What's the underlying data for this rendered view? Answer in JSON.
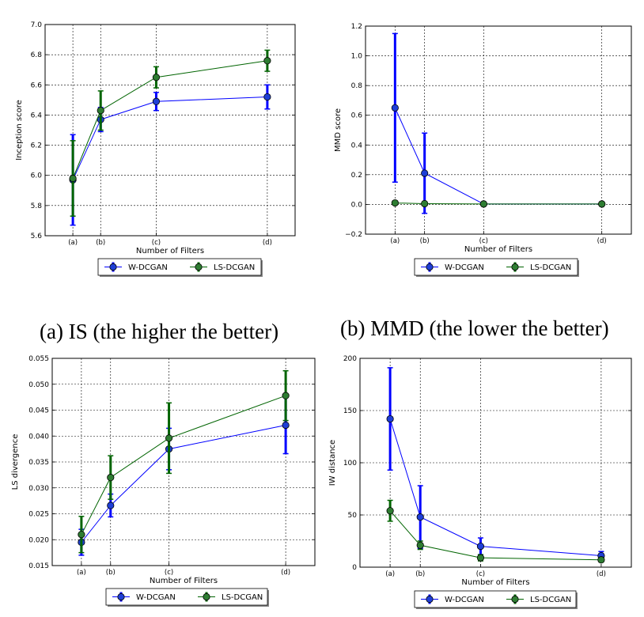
{
  "colors": {
    "w_dcgan": "#0000ff",
    "ls_dcgan": "#006400",
    "w_face": "#1f3fd6",
    "ls_face": "#2e7d32"
  },
  "captions": [
    "(a) IS (the higher the better)",
    "(b) MMD (the lower the better)"
  ],
  "chart_data": [
    {
      "type": "line",
      "xlabel": "Number of Filters",
      "ylabel": "Inception score",
      "categories": [
        "(a)",
        "(b)",
        "(c)",
        "(d)"
      ],
      "x": [
        1,
        2,
        4,
        8
      ],
      "ylim": [
        5.6,
        7.0
      ],
      "yticks": [
        5.6,
        5.8,
        6.0,
        6.2,
        6.4,
        6.6,
        6.8,
        7.0
      ],
      "ytick_labels": [
        "5.6",
        "5.8",
        "6.0",
        "6.2",
        "6.4",
        "6.6",
        "6.8",
        "7.0"
      ],
      "grid": true,
      "legend": "bottom",
      "series": [
        {
          "name": "W-DCGAN",
          "values": [
            5.97,
            6.37,
            6.49,
            6.52
          ],
          "err": [
            0.3,
            0.08,
            0.06,
            0.08
          ]
        },
        {
          "name": "LS-DCGAN",
          "values": [
            5.98,
            6.43,
            6.65,
            6.76
          ],
          "err": [
            0.25,
            0.13,
            0.07,
            0.07
          ]
        }
      ]
    },
    {
      "type": "line",
      "xlabel": "Number of Filters",
      "ylabel": "MMD score",
      "categories": [
        "(a)",
        "(b)",
        "(c)",
        "(d)"
      ],
      "x": [
        1,
        2,
        4,
        8
      ],
      "ylim": [
        -0.2,
        1.2
      ],
      "yticks": [
        -0.2,
        0.0,
        0.2,
        0.4,
        0.6,
        0.8,
        1.0,
        1.2
      ],
      "ytick_labels": [
        "−0.2",
        "0.0",
        "0.2",
        "0.4",
        "0.6",
        "0.8",
        "1.0",
        "1.2"
      ],
      "grid": true,
      "legend": "bottom",
      "series": [
        {
          "name": "W-DCGAN",
          "values": [
            0.65,
            0.21,
            0.003,
            0.003
          ],
          "err": [
            0.5,
            0.27,
            0.005,
            0.005
          ]
        },
        {
          "name": "LS-DCGAN",
          "values": [
            0.01,
            0.005,
            0.003,
            0.003
          ],
          "err": [
            0.01,
            0.005,
            0.003,
            0.003
          ]
        }
      ]
    },
    {
      "type": "line",
      "xlabel": "Number of Filters",
      "ylabel": "LS divergence",
      "categories": [
        "(a)",
        "(b)",
        "(c)",
        "(d)"
      ],
      "x": [
        1,
        2,
        4,
        8
      ],
      "ylim": [
        0.015,
        0.055
      ],
      "yticks": [
        0.015,
        0.02,
        0.025,
        0.03,
        0.035,
        0.04,
        0.045,
        0.05,
        0.055
      ],
      "ytick_labels": [
        "0.015",
        "0.020",
        "0.025",
        "0.030",
        "0.035",
        "0.040",
        "0.045",
        "0.050",
        "0.055"
      ],
      "grid": true,
      "legend": "bottom",
      "series": [
        {
          "name": "W-DCGAN",
          "values": [
            0.0195,
            0.0266,
            0.0375,
            0.0421
          ],
          "err": [
            0.0025,
            0.0022,
            0.004,
            0.0055
          ]
        },
        {
          "name": "LS-DCGAN",
          "values": [
            0.021,
            0.032,
            0.0396,
            0.0478
          ],
          "err": [
            0.0035,
            0.0042,
            0.0068,
            0.0048
          ]
        }
      ]
    },
    {
      "type": "line",
      "xlabel": "Number of Filters",
      "ylabel": "IW distance",
      "categories": [
        "(a)",
        "(b)",
        "(c)",
        "(d)"
      ],
      "x": [
        1,
        2,
        4,
        8
      ],
      "ylim": [
        0,
        200
      ],
      "yticks": [
        0,
        50,
        100,
        150,
        200
      ],
      "ytick_labels": [
        "0",
        "50",
        "100",
        "150",
        "200"
      ],
      "grid": true,
      "legend": "bottom",
      "series": [
        {
          "name": "W-DCGAN",
          "values": [
            142,
            48,
            20,
            11
          ],
          "err": [
            49,
            30,
            8,
            4
          ]
        },
        {
          "name": "LS-DCGAN",
          "values": [
            54,
            21,
            9,
            7
          ],
          "err": [
            10,
            4,
            3,
            2
          ]
        }
      ]
    }
  ]
}
